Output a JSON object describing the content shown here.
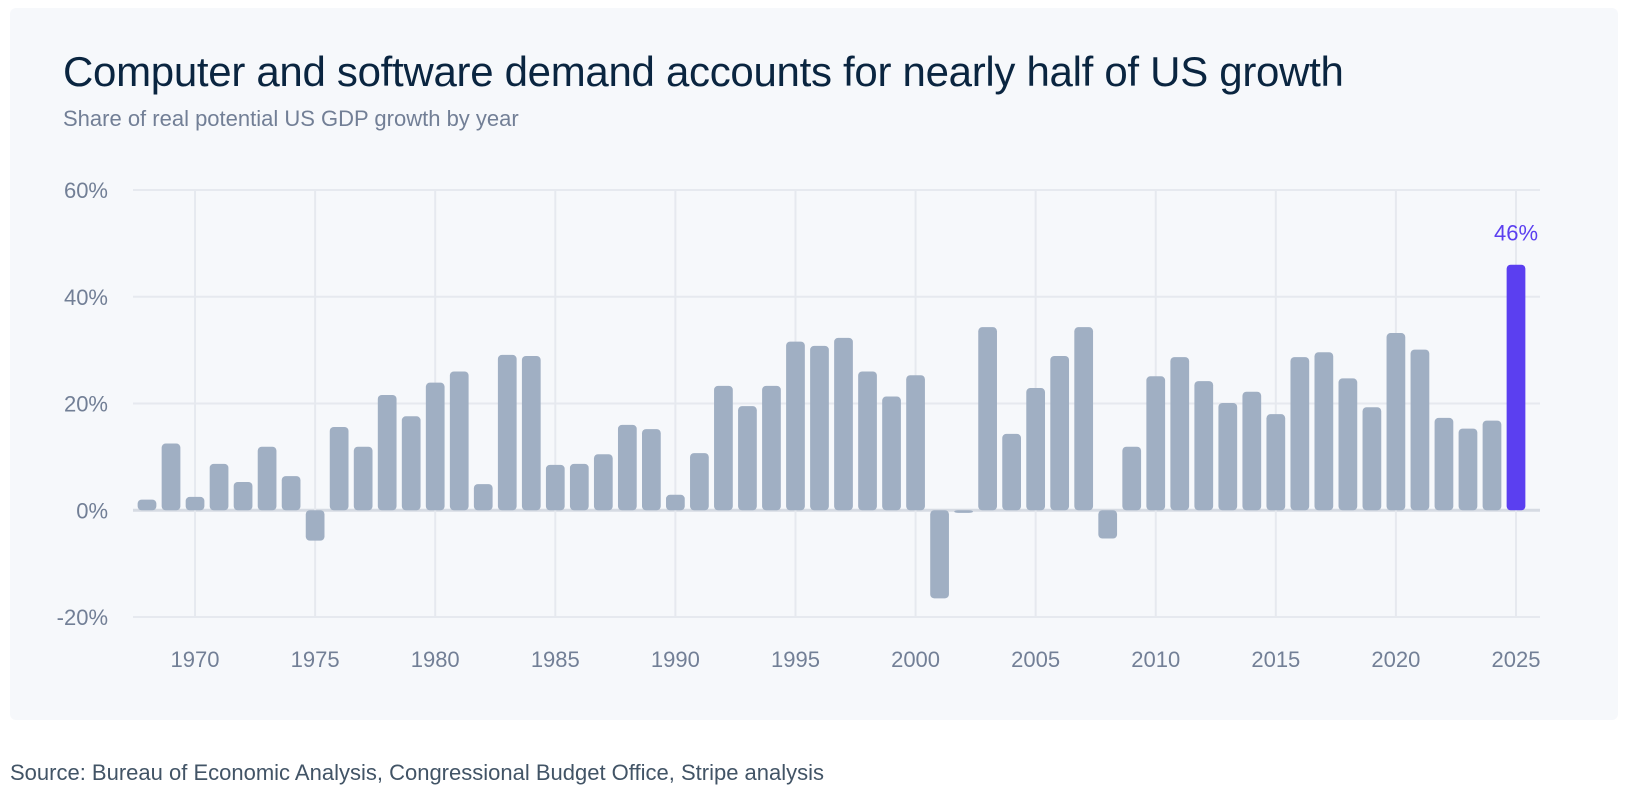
{
  "header": {
    "title": "Computer and software demand accounts for nearly half of US growth",
    "subtitle": "Share of real potential US GDP growth by year"
  },
  "footer": {
    "source": "Source: Bureau of Economic Analysis, Congressional Budget Office, Stripe analysis"
  },
  "colors": {
    "bar": "#a0afc3",
    "highlight": "#5b3ff0",
    "grid": "#e6e9ef",
    "zero_line": "#d6dbe3"
  },
  "chart_data": {
    "type": "bar",
    "title": "Computer and software demand accounts for nearly half of US growth",
    "subtitle": "Share of real potential US GDP growth by year",
    "xlabel": "",
    "ylabel": "",
    "ylim": [
      -20,
      60
    ],
    "yticks": [
      60,
      40,
      20,
      0,
      -20
    ],
    "ytick_labels": [
      "60%",
      "40%",
      "20%",
      "0%",
      "-20%"
    ],
    "xticks": [
      1970,
      1975,
      1980,
      1985,
      1990,
      1995,
      2000,
      2005,
      2010,
      2015,
      2020,
      2025
    ],
    "xtick_labels": [
      "1970",
      "1975",
      "1980",
      "1985",
      "1990",
      "1995",
      "2000",
      "2005",
      "2010",
      "2015",
      "2020",
      "2025"
    ],
    "grid": true,
    "unit": "%",
    "categories": [
      1968,
      1969,
      1970,
      1971,
      1972,
      1973,
      1974,
      1975,
      1976,
      1977,
      1978,
      1979,
      1980,
      1981,
      1982,
      1983,
      1984,
      1985,
      1986,
      1987,
      1988,
      1989,
      1990,
      1991,
      1992,
      1993,
      1994,
      1995,
      1996,
      1997,
      1998,
      1999,
      2000,
      2001,
      2002,
      2003,
      2004,
      2005,
      2006,
      2007,
      2008,
      2009,
      2010,
      2011,
      2012,
      2013,
      2014,
      2015,
      2016,
      2017,
      2018,
      2019,
      2020,
      2021,
      2022,
      2023,
      2024,
      2025
    ],
    "values": [
      2.0,
      12.5,
      2.5,
      8.7,
      5.3,
      11.9,
      6.4,
      -5.7,
      15.6,
      11.9,
      21.6,
      17.6,
      23.9,
      26.0,
      4.9,
      29.1,
      28.9,
      8.5,
      8.7,
      10.5,
      16.0,
      15.2,
      2.9,
      10.7,
      23.3,
      19.5,
      23.3,
      31.6,
      30.8,
      32.3,
      26.0,
      21.3,
      25.3,
      -16.5,
      -0.5,
      34.3,
      14.3,
      22.9,
      28.9,
      34.3,
      -5.3,
      11.9,
      25.1,
      28.7,
      24.2,
      20.1,
      22.2,
      18.0,
      28.7,
      29.6,
      24.7,
      19.3,
      33.2,
      30.1,
      17.3,
      15.3,
      16.8,
      46
    ],
    "highlight": {
      "category": 2025,
      "label": "46%"
    }
  }
}
